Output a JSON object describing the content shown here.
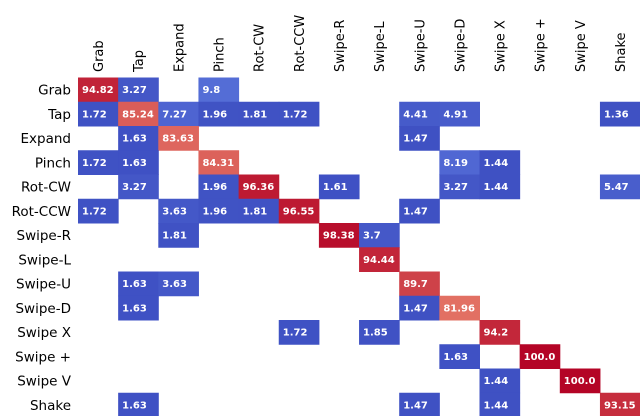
{
  "chart_data": {
    "type": "heatmap",
    "title": "",
    "xlabel": "",
    "ylabel": "",
    "x_labels": [
      "Grab",
      "Tap",
      "Expand",
      "Pinch",
      "Rot-CW",
      "Rot-CCW",
      "Swipe-R",
      "Swipe-L",
      "Swipe-U",
      "Swipe-D",
      "Swipe X",
      "Swipe +",
      "Swipe V",
      "Shake"
    ],
    "y_labels": [
      "Grab",
      "Tap",
      "Expand",
      "Pinch",
      "Rot-CW",
      "Rot-CCW",
      "Swipe-R",
      "Swipe-L",
      "Swipe-U",
      "Swipe-D",
      "Swipe X",
      "Swipe +",
      "Swipe V",
      "Shake"
    ],
    "value_range": [
      0,
      100
    ],
    "colormap": "coolwarm",
    "colors": {
      "low": "#3b4cc0",
      "mid": "#dddddd",
      "high": "#b40426"
    },
    "cells": [
      [
        0,
        0,
        "94.82"
      ],
      [
        0,
        1,
        "3.27"
      ],
      [
        0,
        3,
        "9.8"
      ],
      [
        1,
        0,
        "1.72"
      ],
      [
        1,
        1,
        "85.24"
      ],
      [
        1,
        2,
        "7.27"
      ],
      [
        1,
        3,
        "1.96"
      ],
      [
        1,
        4,
        "1.81"
      ],
      [
        1,
        5,
        "1.72"
      ],
      [
        1,
        8,
        "4.41"
      ],
      [
        1,
        9,
        "4.91"
      ],
      [
        1,
        13,
        "1.36"
      ],
      [
        2,
        1,
        "1.63"
      ],
      [
        2,
        2,
        "83.63"
      ],
      [
        2,
        8,
        "1.47"
      ],
      [
        3,
        0,
        "1.72"
      ],
      [
        3,
        1,
        "1.63"
      ],
      [
        3,
        3,
        "84.31"
      ],
      [
        3,
        9,
        "8.19"
      ],
      [
        3,
        10,
        "1.44"
      ],
      [
        4,
        1,
        "3.27"
      ],
      [
        4,
        3,
        "1.96"
      ],
      [
        4,
        4,
        "96.36"
      ],
      [
        4,
        6,
        "1.61"
      ],
      [
        4,
        9,
        "3.27"
      ],
      [
        4,
        10,
        "1.44"
      ],
      [
        4,
        13,
        "5.47"
      ],
      [
        5,
        0,
        "1.72"
      ],
      [
        5,
        2,
        "3.63"
      ],
      [
        5,
        3,
        "1.96"
      ],
      [
        5,
        4,
        "1.81"
      ],
      [
        5,
        5,
        "96.55"
      ],
      [
        5,
        8,
        "1.47"
      ],
      [
        6,
        2,
        "1.81"
      ],
      [
        6,
        6,
        "98.38"
      ],
      [
        6,
        7,
        "3.7"
      ],
      [
        7,
        7,
        "94.44"
      ],
      [
        8,
        1,
        "1.63"
      ],
      [
        8,
        2,
        "3.63"
      ],
      [
        8,
        8,
        "89.7"
      ],
      [
        9,
        1,
        "1.63"
      ],
      [
        9,
        8,
        "1.47"
      ],
      [
        9,
        9,
        "81.96"
      ],
      [
        10,
        5,
        "1.72"
      ],
      [
        10,
        7,
        "1.85"
      ],
      [
        10,
        10,
        "94.2"
      ],
      [
        11,
        9,
        "1.63"
      ],
      [
        11,
        11,
        "100.0"
      ],
      [
        12,
        10,
        "1.44"
      ],
      [
        12,
        12,
        "100.0"
      ],
      [
        13,
        1,
        "1.63"
      ],
      [
        13,
        8,
        "1.47"
      ],
      [
        13,
        10,
        "1.44"
      ],
      [
        13,
        13,
        "93.15"
      ]
    ]
  }
}
